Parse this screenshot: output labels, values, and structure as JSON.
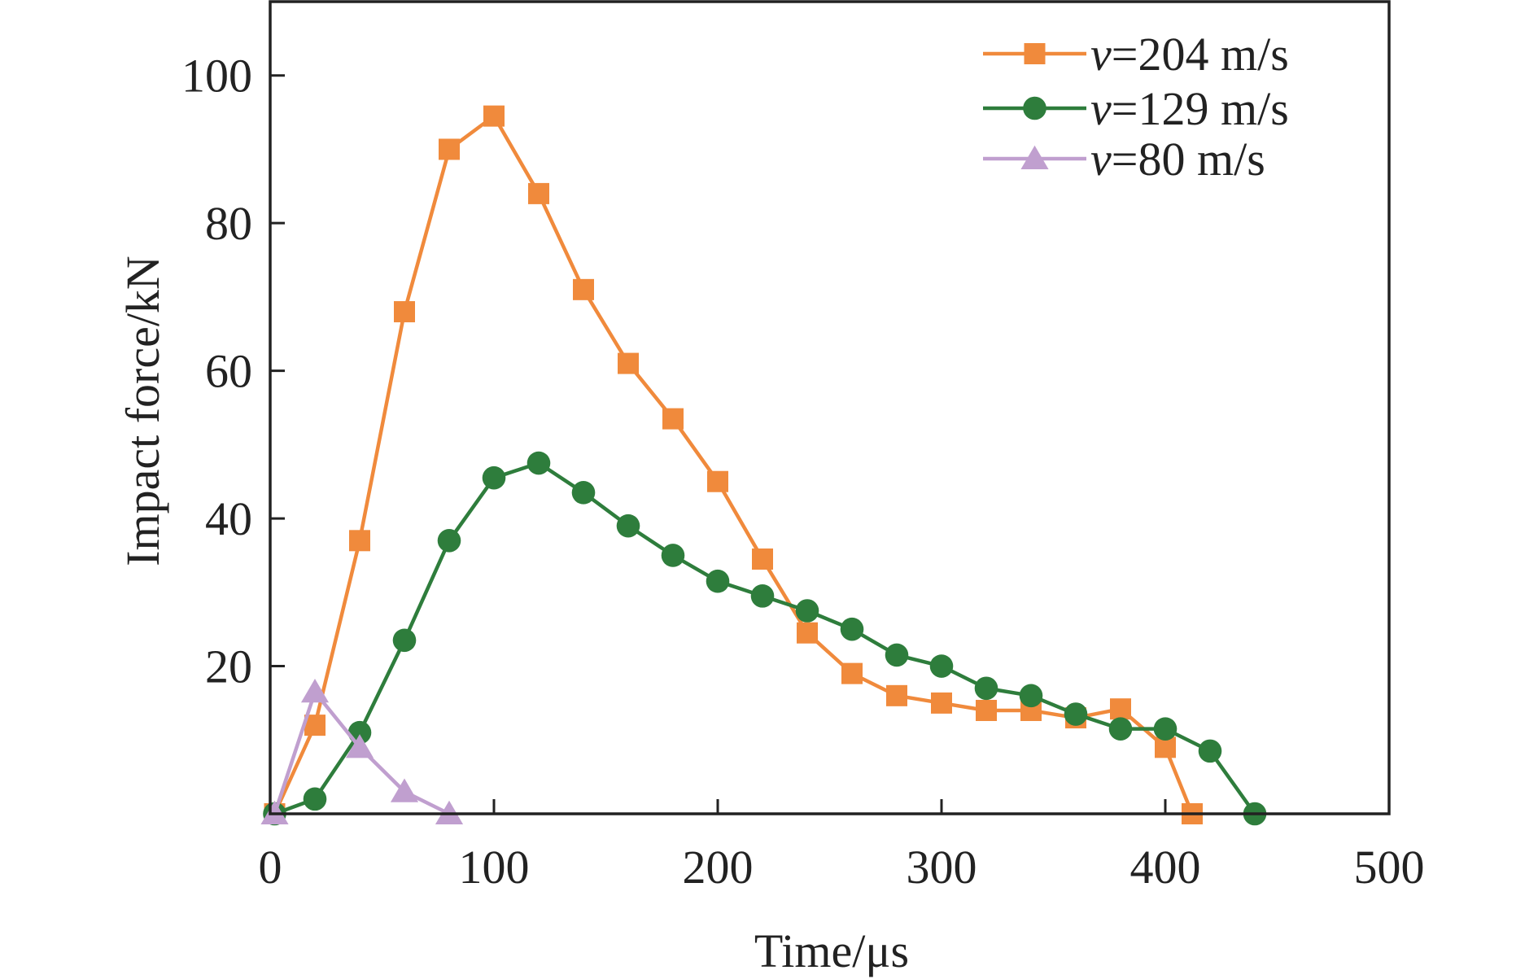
{
  "chart_data": {
    "type": "line",
    "title": "",
    "xlabel": "Time/μs",
    "ylabel": "Impact force/kN",
    "xlim": [
      0,
      500
    ],
    "ylim": [
      0,
      110
    ],
    "xticks": [
      0,
      100,
      200,
      300,
      400,
      500
    ],
    "xtick_labels": [
      "0",
      "100",
      "200",
      "300",
      "400",
      "500"
    ],
    "yticks": [
      20,
      40,
      60,
      80,
      100
    ],
    "ytick_labels": [
      "20",
      "40",
      "60",
      "80",
      "100"
    ],
    "grid": false,
    "legend_position": "top-right",
    "series": [
      {
        "name": "v=204 m/s",
        "name_italic": "v",
        "name_rest": "=204 m/s",
        "color": "#f08a3c",
        "marker": "square",
        "x": [
          2,
          20,
          40,
          60,
          80,
          100,
          120,
          140,
          160,
          180,
          200,
          220,
          240,
          260,
          280,
          300,
          320,
          340,
          360,
          380,
          400,
          412
        ],
        "y": [
          0,
          12,
          37,
          68,
          90,
          94.5,
          84,
          71,
          61,
          53.5,
          45,
          34.5,
          24.5,
          19,
          16,
          15,
          14,
          14,
          13,
          14.2,
          9,
          0
        ]
      },
      {
        "name": "v=129 m/s",
        "name_italic": "v",
        "name_rest": "=129 m/s",
        "color": "#2e7d3c",
        "marker": "circle",
        "x": [
          2,
          20,
          40,
          60,
          80,
          100,
          120,
          140,
          160,
          180,
          200,
          220,
          240,
          260,
          280,
          300,
          320,
          340,
          360,
          380,
          400,
          420,
          440
        ],
        "y": [
          0,
          2,
          11,
          23.5,
          37,
          45.5,
          47.5,
          43.5,
          39,
          35,
          31.5,
          29.5,
          27.5,
          25,
          21.5,
          20,
          17,
          16,
          13.5,
          11.5,
          11.5,
          8.5,
          0
        ]
      },
      {
        "name": "v=80 m/s",
        "name_italic": "v",
        "name_rest": "=80 m/s",
        "color": "#c09fcf",
        "marker": "triangle",
        "x": [
          2,
          20,
          40,
          60,
          80
        ],
        "y": [
          0,
          16.5,
          9,
          3,
          0
        ]
      }
    ]
  }
}
